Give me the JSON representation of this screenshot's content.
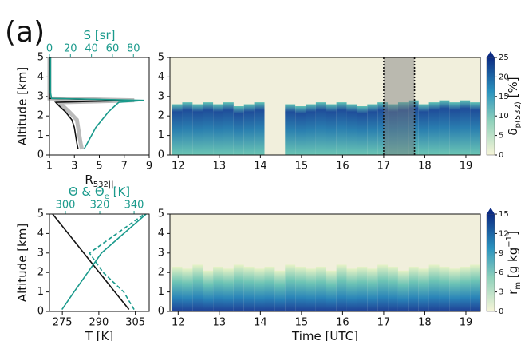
{
  "panel_label": "(a)",
  "chart_data": [
    {
      "type": "profile",
      "xlabel": [
        "R",
        [
          "532||",
          "sub"
        ]
      ],
      "x2label": [
        "S [sr]"
      ],
      "ylabel": [
        "Altitude [km]"
      ],
      "xlim": [
        1,
        9
      ],
      "xticks": [
        1,
        3,
        5,
        7,
        9
      ],
      "x2lim": [
        0,
        95
      ],
      "x2ticks": [
        0,
        20,
        40,
        60,
        80
      ],
      "x2color": "#1a9a8c",
      "ylim": [
        0,
        5
      ],
      "yticks": [
        0,
        1,
        2,
        3,
        4,
        5
      ],
      "y": [
        0.3,
        0.6,
        1.0,
        1.4,
        1.8,
        2.2,
        2.5,
        2.7,
        2.8,
        2.9,
        3.2,
        5.0
      ],
      "series": [
        {
          "color": "#bbbbbb",
          "width": 5,
          "values": [
            3.6,
            3.5,
            3.4,
            3.3,
            3.2,
            2.6,
            2.1,
            1.8,
            7.8,
            1.0,
            1.0,
            1.0
          ]
        },
        {
          "color": "#111111",
          "width": 1.6,
          "values": [
            3.3,
            3.2,
            3.1,
            3.0,
            2.8,
            2.3,
            1.8,
            1.5,
            7.5,
            1.0,
            1.0,
            1.0
          ]
        },
        {
          "color": "#1a9a8c",
          "width": 1.6,
          "axis": "x2",
          "values": [
            33,
            36,
            40,
            44,
            50,
            56,
            62,
            66,
            90,
            2,
            1,
            1
          ]
        }
      ]
    },
    {
      "type": "curtain",
      "xlim": [
        11.8,
        19.35
      ],
      "xticks": [
        12,
        13,
        14,
        15,
        16,
        17,
        18,
        19
      ],
      "ylim": [
        0,
        5
      ],
      "yticks": [
        0,
        1,
        2,
        3,
        4,
        5
      ],
      "x": [
        11.85,
        12.1,
        12.35,
        12.6,
        12.85,
        13.1,
        13.35,
        13.6,
        13.85,
        14.1,
        14.35,
        14.6,
        14.85,
        15.1,
        15.35,
        15.6,
        15.85,
        16.1,
        16.35,
        16.6,
        16.85,
        17.1,
        17.35,
        17.6,
        17.85,
        18.1,
        18.35,
        18.6,
        18.85,
        19.1,
        19.35
      ],
      "values": [
        2.6,
        2.7,
        2.6,
        2.7,
        2.6,
        2.7,
        2.5,
        2.6,
        2.7,
        null,
        null,
        2.6,
        2.5,
        2.6,
        2.7,
        2.6,
        2.7,
        2.6,
        2.5,
        2.6,
        2.7,
        2.6,
        2.7,
        2.8,
        2.6,
        2.7,
        2.8,
        2.7,
        2.8,
        2.7,
        2.8
      ],
      "fill": "g1",
      "highlight": [
        17,
        17.75
      ],
      "colorbar": {
        "label": [
          "δ",
          [
            "p(532)",
            "sub"
          ],
          " [%]"
        ],
        "lim": [
          0,
          25
        ],
        "ticks": [
          0,
          5,
          10,
          15,
          20,
          25
        ]
      }
    },
    {
      "type": "profile",
      "xlabel": [
        "T [K]"
      ],
      "x2label": [
        "Θ & Θ",
        [
          "e",
          "sub"
        ],
        " [K]"
      ],
      "ylabel": [
        "Altitude [km]"
      ],
      "xlim": [
        269.7,
        310.7
      ],
      "xticks": [
        275,
        290,
        305
      ],
      "x2lim": [
        290.7,
        348.8
      ],
      "x2ticks": [
        300,
        320,
        340
      ],
      "x2color": "#1a9a8c",
      "ylim": [
        0,
        5
      ],
      "yticks": [
        0,
        1,
        2,
        3,
        4,
        5
      ],
      "y": [
        0.1,
        1,
        2,
        2.5,
        3,
        4,
        5
      ],
      "series": [
        {
          "color": "#111111",
          "width": 1.6,
          "values": [
            302.4,
            296.6,
            290.2,
            287,
            283.8,
            277.4,
            271
          ]
        },
        {
          "color": "#1a9a8c",
          "width": 1.6,
          "axis": "x2",
          "values": [
            298,
            305,
            313,
            317,
            321,
            334,
            347
          ]
        },
        {
          "color": "#1a9a8c",
          "width": 1.6,
          "axis": "x2",
          "dash": true,
          "values": [
            340,
            334,
            322,
            318,
            314,
            330,
            346
          ]
        }
      ]
    },
    {
      "type": "curtain",
      "xlabel": [
        "Time [UTC]"
      ],
      "xlim": [
        11.8,
        19.35
      ],
      "xticks": [
        12,
        13,
        14,
        15,
        16,
        17,
        18,
        19
      ],
      "ylim": [
        0,
        5
      ],
      "yticks": [
        0,
        1,
        2,
        3,
        4,
        5
      ],
      "x": [
        11.85,
        12.1,
        12.35,
        12.6,
        12.85,
        13.1,
        13.35,
        13.6,
        13.85,
        14.1,
        14.35,
        14.6,
        14.85,
        15.1,
        15.35,
        15.6,
        15.85,
        16.1,
        16.35,
        16.6,
        16.85,
        17.1,
        17.35,
        17.6,
        17.85,
        18.1,
        18.35,
        18.6,
        18.85,
        19.1,
        19.35
      ],
      "values": [
        2.3,
        2.2,
        2.4,
        2.1,
        2.3,
        2.2,
        2.4,
        2.3,
        2.2,
        2.3,
        2.1,
        2.4,
        2.3,
        2.2,
        2.3,
        2.1,
        2.4,
        2.2,
        2.3,
        2.2,
        2.4,
        2.3,
        2.1,
        2.3,
        2.2,
        2.4,
        2.3,
        2.2,
        2.3,
        2.4,
        2.2
      ],
      "fill": "g2",
      "colorbar": {
        "label": [
          "r",
          [
            "m",
            "sub"
          ],
          " [g kg",
          [
            "−1",
            "sup"
          ],
          "]"
        ],
        "lim": [
          0,
          15
        ],
        "ticks": [
          0,
          3,
          6,
          9,
          12,
          15
        ]
      }
    }
  ]
}
